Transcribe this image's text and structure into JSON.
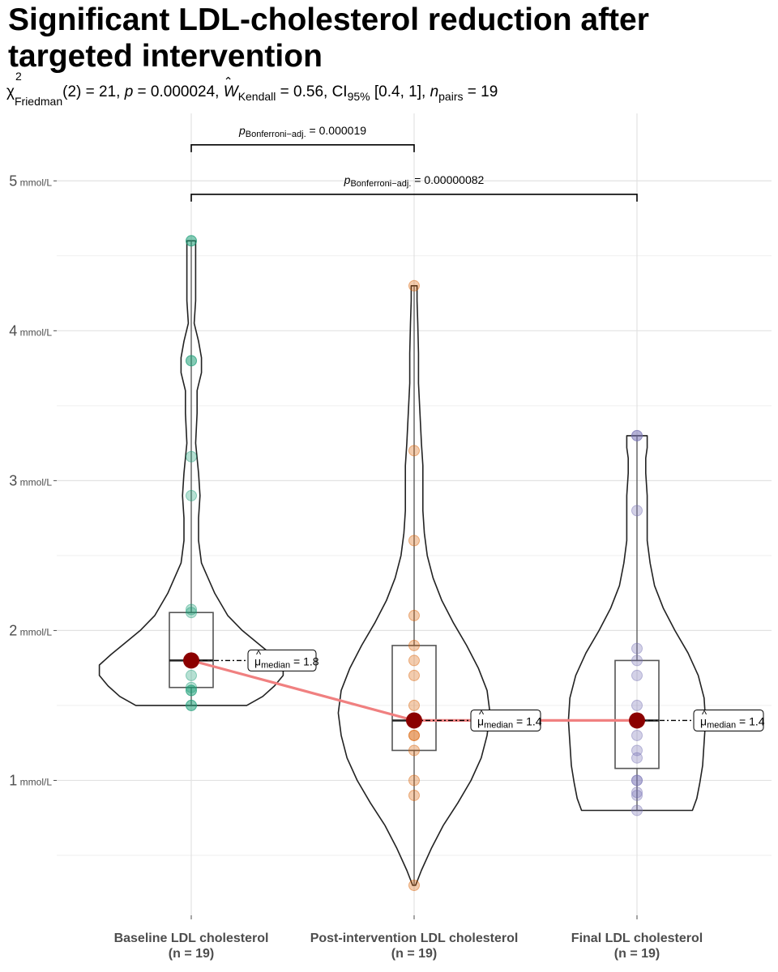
{
  "subtitle": {
    "chi": "χ",
    "chi_sup": "2",
    "chi_sub": "Friedman",
    "df_text": "(2) = 21, ",
    "p_symbol": "p",
    "p_text": " = 0.000024, ",
    "w_hat": "⌃",
    "w_symbol": "W",
    "w_sub": "Kendall",
    "w_text": " = 0.56, CI",
    "ci_sub": "95%",
    "ci_text": " [0.4, 1], ",
    "n_symbol": "n",
    "n_sub": "pairs",
    "n_text": " = 19"
  },
  "chart_data": {
    "type": "violin",
    "title": "Significant LDL-cholesterol reduction after targeted intervention",
    "y_unit": "mmol/L",
    "ylim": [
      0.1,
      5.45
    ],
    "y_ticks": [
      1,
      2,
      3,
      4,
      5
    ],
    "y_minor_ticks": [
      0.5,
      1.5,
      2.5,
      3.5,
      4.5
    ],
    "groups": [
      {
        "name": "Baseline LDL cholesterol",
        "n_label": "(n = 19)",
        "color": "#1b9e77",
        "values": [
          1.5,
          1.5,
          1.6,
          1.6,
          1.62,
          1.7,
          1.8,
          1.8,
          1.8,
          1.8,
          1.8,
          2.12,
          2.14,
          2.9,
          3.16,
          3.8,
          3.8,
          4.6,
          4.6
        ],
        "median": 1.8,
        "q1": 1.62,
        "q3": 2.12,
        "min": 1.5,
        "max": 4.6,
        "median_label": "= 1.8",
        "violin_widths": [
          [
            1.5,
            0.38
          ],
          [
            1.56,
            0.49
          ],
          [
            1.63,
            0.57
          ],
          [
            1.7,
            0.63
          ],
          [
            1.77,
            0.63
          ],
          [
            1.84,
            0.55
          ],
          [
            1.92,
            0.45
          ],
          [
            2.0,
            0.35
          ],
          [
            2.1,
            0.25
          ],
          [
            2.25,
            0.16
          ],
          [
            2.45,
            0.07
          ],
          [
            2.6,
            0.05
          ],
          [
            2.75,
            0.05
          ],
          [
            2.9,
            0.06
          ],
          [
            3.05,
            0.05
          ],
          [
            3.25,
            0.03
          ],
          [
            3.45,
            0.04
          ],
          [
            3.6,
            0.04
          ],
          [
            3.72,
            0.07
          ],
          [
            3.82,
            0.07
          ],
          [
            3.93,
            0.05
          ],
          [
            4.05,
            0.02
          ],
          [
            4.2,
            0.03
          ],
          [
            4.35,
            0.03
          ],
          [
            4.45,
            0.03
          ],
          [
            4.53,
            0.03
          ],
          [
            4.6,
            0.03
          ]
        ]
      },
      {
        "name": "Post-intervention LDL cholesterol",
        "n_label": "(n = 19)",
        "color": "#d95f02",
        "values": [
          0.3,
          0.9,
          1.0,
          1.2,
          1.3,
          1.3,
          1.4,
          1.4,
          1.4,
          1.4,
          1.4,
          1.5,
          1.7,
          1.8,
          1.9,
          2.1,
          2.6,
          3.2,
          4.3
        ],
        "median": 1.4,
        "q1": 1.2,
        "q3": 1.9,
        "min": 0.3,
        "max": 4.3,
        "median_label": "= 1.4",
        "violin_widths": [
          [
            0.3,
            0.01
          ],
          [
            0.4,
            0.05
          ],
          [
            0.55,
            0.12
          ],
          [
            0.7,
            0.2
          ],
          [
            0.85,
            0.3
          ],
          [
            1.0,
            0.39
          ],
          [
            1.15,
            0.46
          ],
          [
            1.3,
            0.5
          ],
          [
            1.45,
            0.52
          ],
          [
            1.6,
            0.5
          ],
          [
            1.75,
            0.44
          ],
          [
            1.9,
            0.36
          ],
          [
            2.05,
            0.27
          ],
          [
            2.2,
            0.19
          ],
          [
            2.35,
            0.13
          ],
          [
            2.5,
            0.09
          ],
          [
            2.65,
            0.07
          ],
          [
            2.8,
            0.06
          ],
          [
            2.95,
            0.06
          ],
          [
            3.1,
            0.06
          ],
          [
            3.25,
            0.05
          ],
          [
            3.45,
            0.04
          ],
          [
            3.65,
            0.03
          ],
          [
            3.85,
            0.03
          ],
          [
            4.05,
            0.025
          ],
          [
            4.2,
            0.02
          ],
          [
            4.3,
            0.02
          ]
        ]
      },
      {
        "name": "Final LDL cholesterol",
        "n_label": "(n = 19)",
        "color": "#7570b3",
        "values": [
          0.8,
          0.9,
          0.92,
          1.0,
          1.0,
          1.15,
          1.2,
          1.3,
          1.4,
          1.4,
          1.4,
          1.4,
          1.5,
          1.7,
          1.8,
          1.88,
          2.8,
          3.3,
          3.3
        ],
        "median": 1.4,
        "q1": 1.08,
        "q3": 1.8,
        "min": 0.8,
        "max": 3.3,
        "median_label": "= 1.4",
        "violin_widths": [
          [
            0.8,
            0.38
          ],
          [
            0.88,
            0.41
          ],
          [
            0.98,
            0.43
          ],
          [
            1.1,
            0.45
          ],
          [
            1.25,
            0.46
          ],
          [
            1.4,
            0.47
          ],
          [
            1.55,
            0.46
          ],
          [
            1.7,
            0.42
          ],
          [
            1.85,
            0.35
          ],
          [
            2.0,
            0.26
          ],
          [
            2.15,
            0.18
          ],
          [
            2.3,
            0.12
          ],
          [
            2.45,
            0.09
          ],
          [
            2.6,
            0.07
          ],
          [
            2.75,
            0.07
          ],
          [
            2.9,
            0.07
          ],
          [
            3.05,
            0.06
          ],
          [
            3.15,
            0.06
          ],
          [
            3.22,
            0.07
          ],
          [
            3.28,
            0.07
          ],
          [
            3.3,
            0.07
          ]
        ]
      }
    ],
    "median_label_prefix": "μ",
    "median_label_sub": "median",
    "comparisons": [
      {
        "from": 0,
        "to": 1,
        "y": 5.24,
        "label_main": "p",
        "label_sub": "Bonferroni−adj.",
        "label_value": " = 0.000019"
      },
      {
        "from": 0,
        "to": 2,
        "y": 4.91,
        "label_main": "p",
        "label_sub": "Bonferroni−adj.",
        "label_value": " = 0.00000082"
      }
    ],
    "centrality_line_color": "#f08080",
    "centrality_point_color": "#8b0000"
  }
}
